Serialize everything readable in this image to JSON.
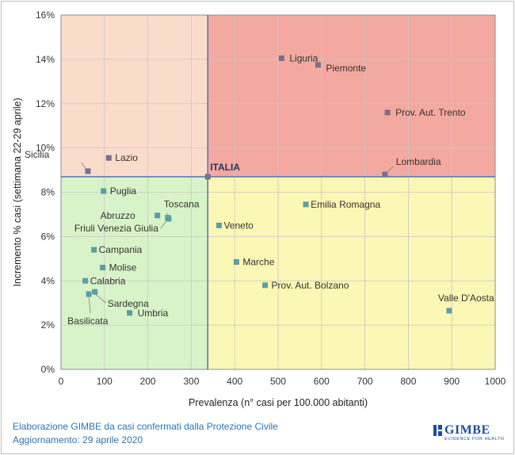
{
  "chart_data": {
    "type": "scatter",
    "xlabel": "Prevalenza  (n° casi per 100.000 abitanti)",
    "ylabel": "Incremento % casi (settimana 22-29 aprile)",
    "xlim": [
      0,
      1000
    ],
    "ylim": [
      0,
      16
    ],
    "x_ticks": [
      0,
      100,
      200,
      300,
      400,
      500,
      600,
      700,
      800,
      900,
      1000
    ],
    "y_ticks": [
      "0%",
      "2%",
      "4%",
      "6%",
      "8%",
      "10%",
      "12%",
      "14%",
      "16%"
    ],
    "reference": {
      "name": "ITALIA",
      "x": 338,
      "y": 8.7
    },
    "quadrant_colors": {
      "top_left": "#fbdccb",
      "top_right": "#f4a9a0",
      "bottom_left": "#d9f3c9",
      "bottom_right": "#fbf7b4"
    },
    "colors": {
      "marker_upper": "#7a6e8f",
      "marker_lower": "#5b9ea6",
      "reference_lines": "#5470b4"
    },
    "points": [
      {
        "name": "Liguria",
        "x": 508,
        "y": 14.05
      },
      {
        "name": "Piemonte",
        "x": 592,
        "y": 13.75
      },
      {
        "name": "Prov. Aut. Trento",
        "x": 752,
        "y": 11.6
      },
      {
        "name": "Lombardia",
        "x": 746,
        "y": 8.8
      },
      {
        "name": "Sicilia",
        "x": 62,
        "y": 8.95
      },
      {
        "name": "Lazio",
        "x": 110,
        "y": 9.55
      },
      {
        "name": "Puglia",
        "x": 98,
        "y": 8.05
      },
      {
        "name": "Toscana",
        "x": 246,
        "y": 6.85
      },
      {
        "name": "Abruzzo",
        "x": 222,
        "y": 6.95
      },
      {
        "name": "Friuli Venezia Giulia",
        "x": 248,
        "y": 6.8
      },
      {
        "name": "Emilia Romagna",
        "x": 564,
        "y": 7.45
      },
      {
        "name": "Veneto",
        "x": 364,
        "y": 6.5
      },
      {
        "name": "Campania",
        "x": 76,
        "y": 5.4
      },
      {
        "name": "Molise",
        "x": 96,
        "y": 4.6
      },
      {
        "name": "Calabria",
        "x": 56,
        "y": 4.0
      },
      {
        "name": "Marche",
        "x": 404,
        "y": 4.85
      },
      {
        "name": "Prov. Aut. Bolzano",
        "x": 470,
        "y": 3.8
      },
      {
        "name": "Sardegna",
        "x": 78,
        "y": 3.5
      },
      {
        "name": "Basilicata",
        "x": 64,
        "y": 3.4
      },
      {
        "name": "Umbria",
        "x": 158,
        "y": 2.55
      },
      {
        "name": "Valle D'Aosta",
        "x": 894,
        "y": 2.65
      }
    ]
  },
  "footer": {
    "line1": "Elaborazione GIMBE da casi confermati dalla Protezione Civile",
    "line2": "Aggiornamento: 29 aprile 2020"
  },
  "logo": {
    "name": "GIMBE",
    "tagline": "EVIDENCE FOR HEALTH",
    "color": "#1f4e9a"
  }
}
